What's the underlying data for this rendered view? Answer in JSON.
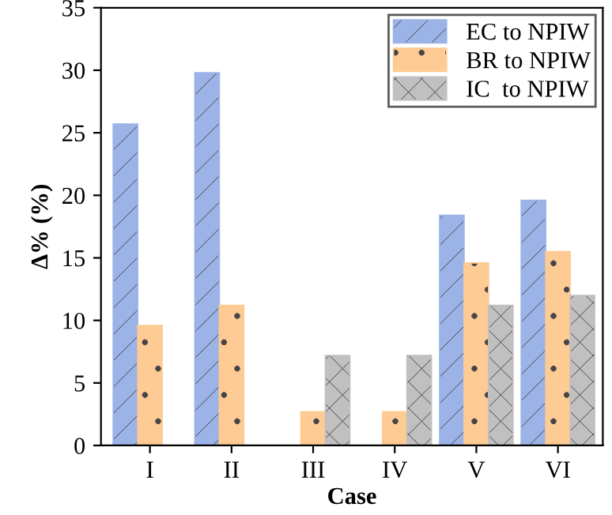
{
  "chart_data": {
    "type": "bar",
    "xlabel": "Case",
    "ylabel": "Δ% (%)",
    "categories": [
      "I",
      "II",
      "III",
      "IV",
      "V",
      "VI"
    ],
    "series": [
      {
        "name": "EC to NPIW",
        "color": "#9bb3e6",
        "values": [
          25.7,
          29.8,
          null,
          null,
          18.4,
          19.6
        ]
      },
      {
        "name": "BR to NPIW",
        "color": "#fdcb93",
        "values": [
          9.6,
          11.2,
          2.7,
          2.7,
          14.6,
          15.5
        ]
      },
      {
        "name": "IC  to NPIW",
        "color": "#c0c0c0",
        "values": [
          null,
          null,
          7.2,
          7.2,
          11.2,
          12.0
        ]
      }
    ],
    "ylim": [
      0,
      35
    ],
    "yticks": [
      0,
      5,
      10,
      15,
      20,
      25,
      30,
      35
    ],
    "legend": "top right",
    "grid": false
  }
}
